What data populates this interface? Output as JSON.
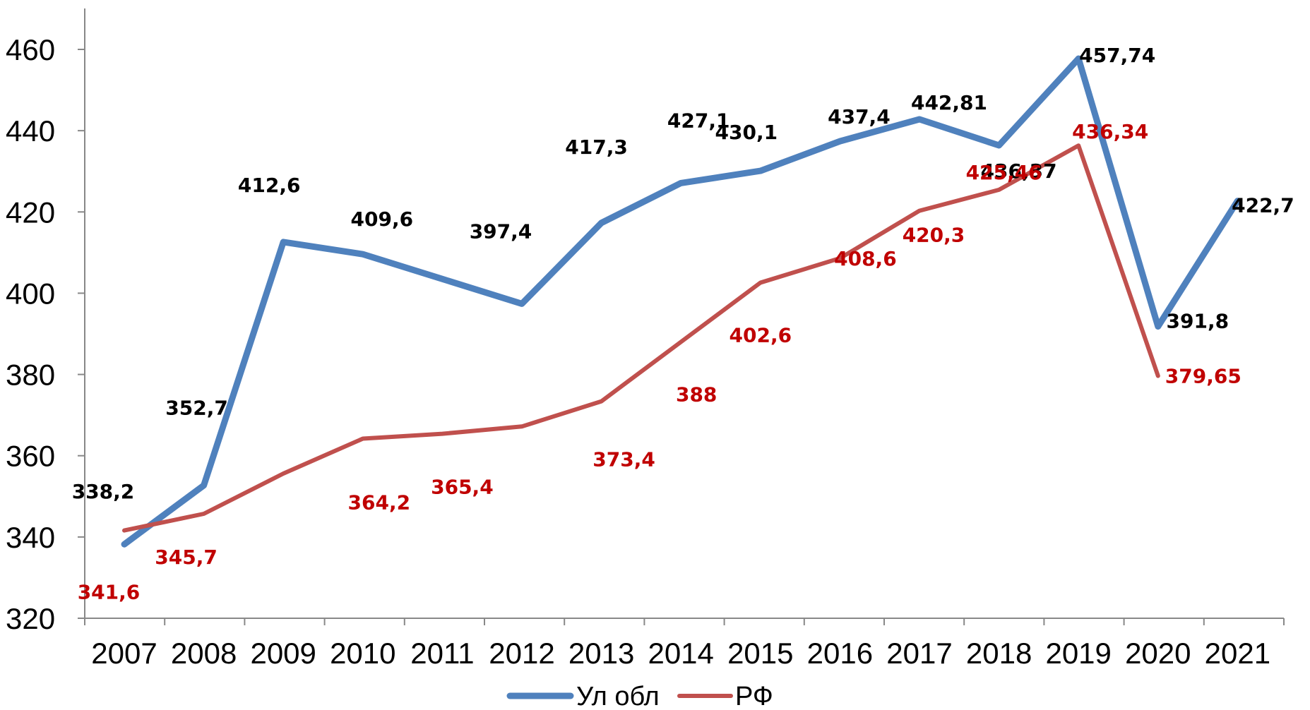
{
  "chart_data": {
    "type": "line",
    "title": "",
    "xlabel": "",
    "ylabel": "",
    "categories": [
      "2007",
      "2008",
      "2009",
      "2010",
      "2011",
      "2012",
      "2013",
      "2014",
      "2015",
      "2016",
      "2017",
      "2018",
      "2019",
      "2020",
      "2021"
    ],
    "ylim": [
      320,
      460
    ],
    "yticks": [
      320,
      340,
      360,
      380,
      400,
      420,
      440,
      460
    ],
    "grid": false,
    "legend_position": "bottom",
    "series": [
      {
        "name": "Ул обл",
        "color": "#4F81BD",
        "label_color": "#000000",
        "values": [
          338.2,
          352.7,
          412.6,
          409.6,
          403.5,
          397.4,
          417.3,
          427.1,
          430.1,
          437.4,
          442.81,
          436.37,
          457.74,
          391.8,
          422.7
        ],
        "data_labels": [
          "338,2",
          "352,7",
          "412,6",
          "409,6",
          "",
          "397,4",
          "417,3",
          "427,1",
          "430,1",
          "437,4",
          "442,81",
          "436,37",
          "457,74",
          "391,8",
          "422,7"
        ]
      },
      {
        "name": "РФ",
        "color": "#C0504D",
        "label_color": "#C00000",
        "values": [
          341.6,
          345.7,
          355.6,
          364.2,
          365.4,
          367.2,
          373.4,
          388,
          402.6,
          408.6,
          420.3,
          425.46,
          436.34,
          379.65,
          null
        ],
        "data_labels": [
          "341,6",
          "345,7",
          "",
          "364,2",
          "365,4",
          "",
          "373,4",
          "388",
          "402,6",
          "408,6",
          "420,3",
          "425,46",
          "436,34",
          "379,65",
          ""
        ]
      }
    ]
  }
}
